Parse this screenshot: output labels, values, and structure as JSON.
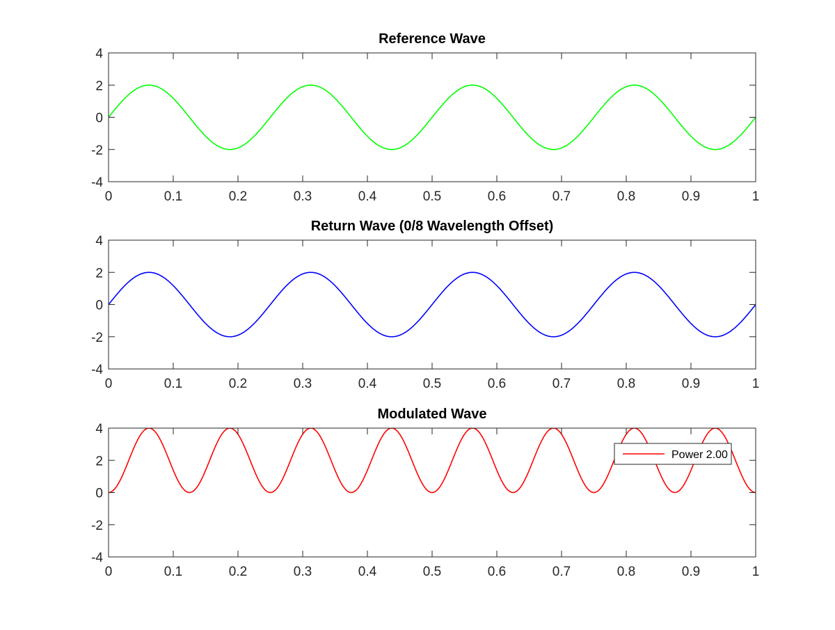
{
  "chart_data": [
    {
      "type": "line",
      "title": "Reference Wave",
      "xlabel": "",
      "ylabel": "",
      "xlim": [
        0,
        1
      ],
      "ylim": [
        -4,
        4
      ],
      "xticks": [
        "0",
        "0.1",
        "0.2",
        "0.3",
        "0.4",
        "0.5",
        "0.6",
        "0.7",
        "0.8",
        "0.9",
        "1"
      ],
      "yticks": [
        "4",
        "2",
        "0",
        "-2",
        "-4"
      ],
      "grid": false,
      "legend": null,
      "series": [
        {
          "color": "#00ff00",
          "function": "2*sin(2*pi*4*x)",
          "amplitude": 2,
          "cycles_per_unit": 4,
          "x": [
            0,
            0.0625,
            0.125,
            0.1875,
            0.25,
            0.3125,
            0.375,
            0.4375,
            0.5,
            0.5625,
            0.625,
            0.6875,
            0.75,
            0.8125,
            0.875,
            0.9375,
            1
          ],
          "y": [
            0,
            2,
            0,
            -2,
            0,
            2,
            0,
            -2,
            0,
            2,
            0,
            -2,
            0,
            2,
            0,
            -2,
            0
          ]
        }
      ]
    },
    {
      "type": "line",
      "title": "Return Wave (0/8 Wavelength Offset)",
      "xlabel": "",
      "ylabel": "",
      "xlim": [
        0,
        1
      ],
      "ylim": [
        -4,
        4
      ],
      "xticks": [
        "0",
        "0.1",
        "0.2",
        "0.3",
        "0.4",
        "0.5",
        "0.6",
        "0.7",
        "0.8",
        "0.9",
        "1"
      ],
      "yticks": [
        "4",
        "2",
        "0",
        "-2",
        "-4"
      ],
      "grid": false,
      "legend": null,
      "series": [
        {
          "color": "#0000ff",
          "function": "2*sin(2*pi*4*x)",
          "amplitude": 2,
          "cycles_per_unit": 4,
          "x": [
            0,
            0.0625,
            0.125,
            0.1875,
            0.25,
            0.3125,
            0.375,
            0.4375,
            0.5,
            0.5625,
            0.625,
            0.6875,
            0.75,
            0.8125,
            0.875,
            0.9375,
            1
          ],
          "y": [
            0,
            2,
            0,
            -2,
            0,
            2,
            0,
            -2,
            0,
            2,
            0,
            -2,
            0,
            2,
            0,
            -2,
            0
          ]
        }
      ]
    },
    {
      "type": "line",
      "title": "Modulated Wave",
      "xlabel": "",
      "ylabel": "",
      "xlim": [
        0,
        1
      ],
      "ylim": [
        -4,
        4
      ],
      "xticks": [
        "0",
        "0.1",
        "0.2",
        "0.3",
        "0.4",
        "0.5",
        "0.6",
        "0.7",
        "0.8",
        "0.9",
        "1"
      ],
      "yticks": [
        "4",
        "2",
        "0",
        "-2",
        "-4"
      ],
      "grid": false,
      "legend": {
        "position": "top-right",
        "entries": [
          {
            "name": "Power 2.00",
            "color": "#ff0000"
          }
        ]
      },
      "series": [
        {
          "name": "Power 2.00",
          "color": "#ff0000",
          "function": "(2*sin(2*pi*4*x))^2",
          "amplitude": 2,
          "cycles_per_unit": 4,
          "power": 2,
          "x": [
            0,
            0.0625,
            0.125,
            0.1875,
            0.25,
            0.3125,
            0.375,
            0.4375,
            0.5,
            0.5625,
            0.625,
            0.6875,
            0.75,
            0.8125,
            0.875,
            0.9375,
            1
          ],
          "y": [
            0,
            4,
            0,
            4,
            0,
            4,
            0,
            4,
            0,
            4,
            0,
            4,
            0,
            4,
            0,
            4,
            0
          ]
        }
      ]
    }
  ]
}
